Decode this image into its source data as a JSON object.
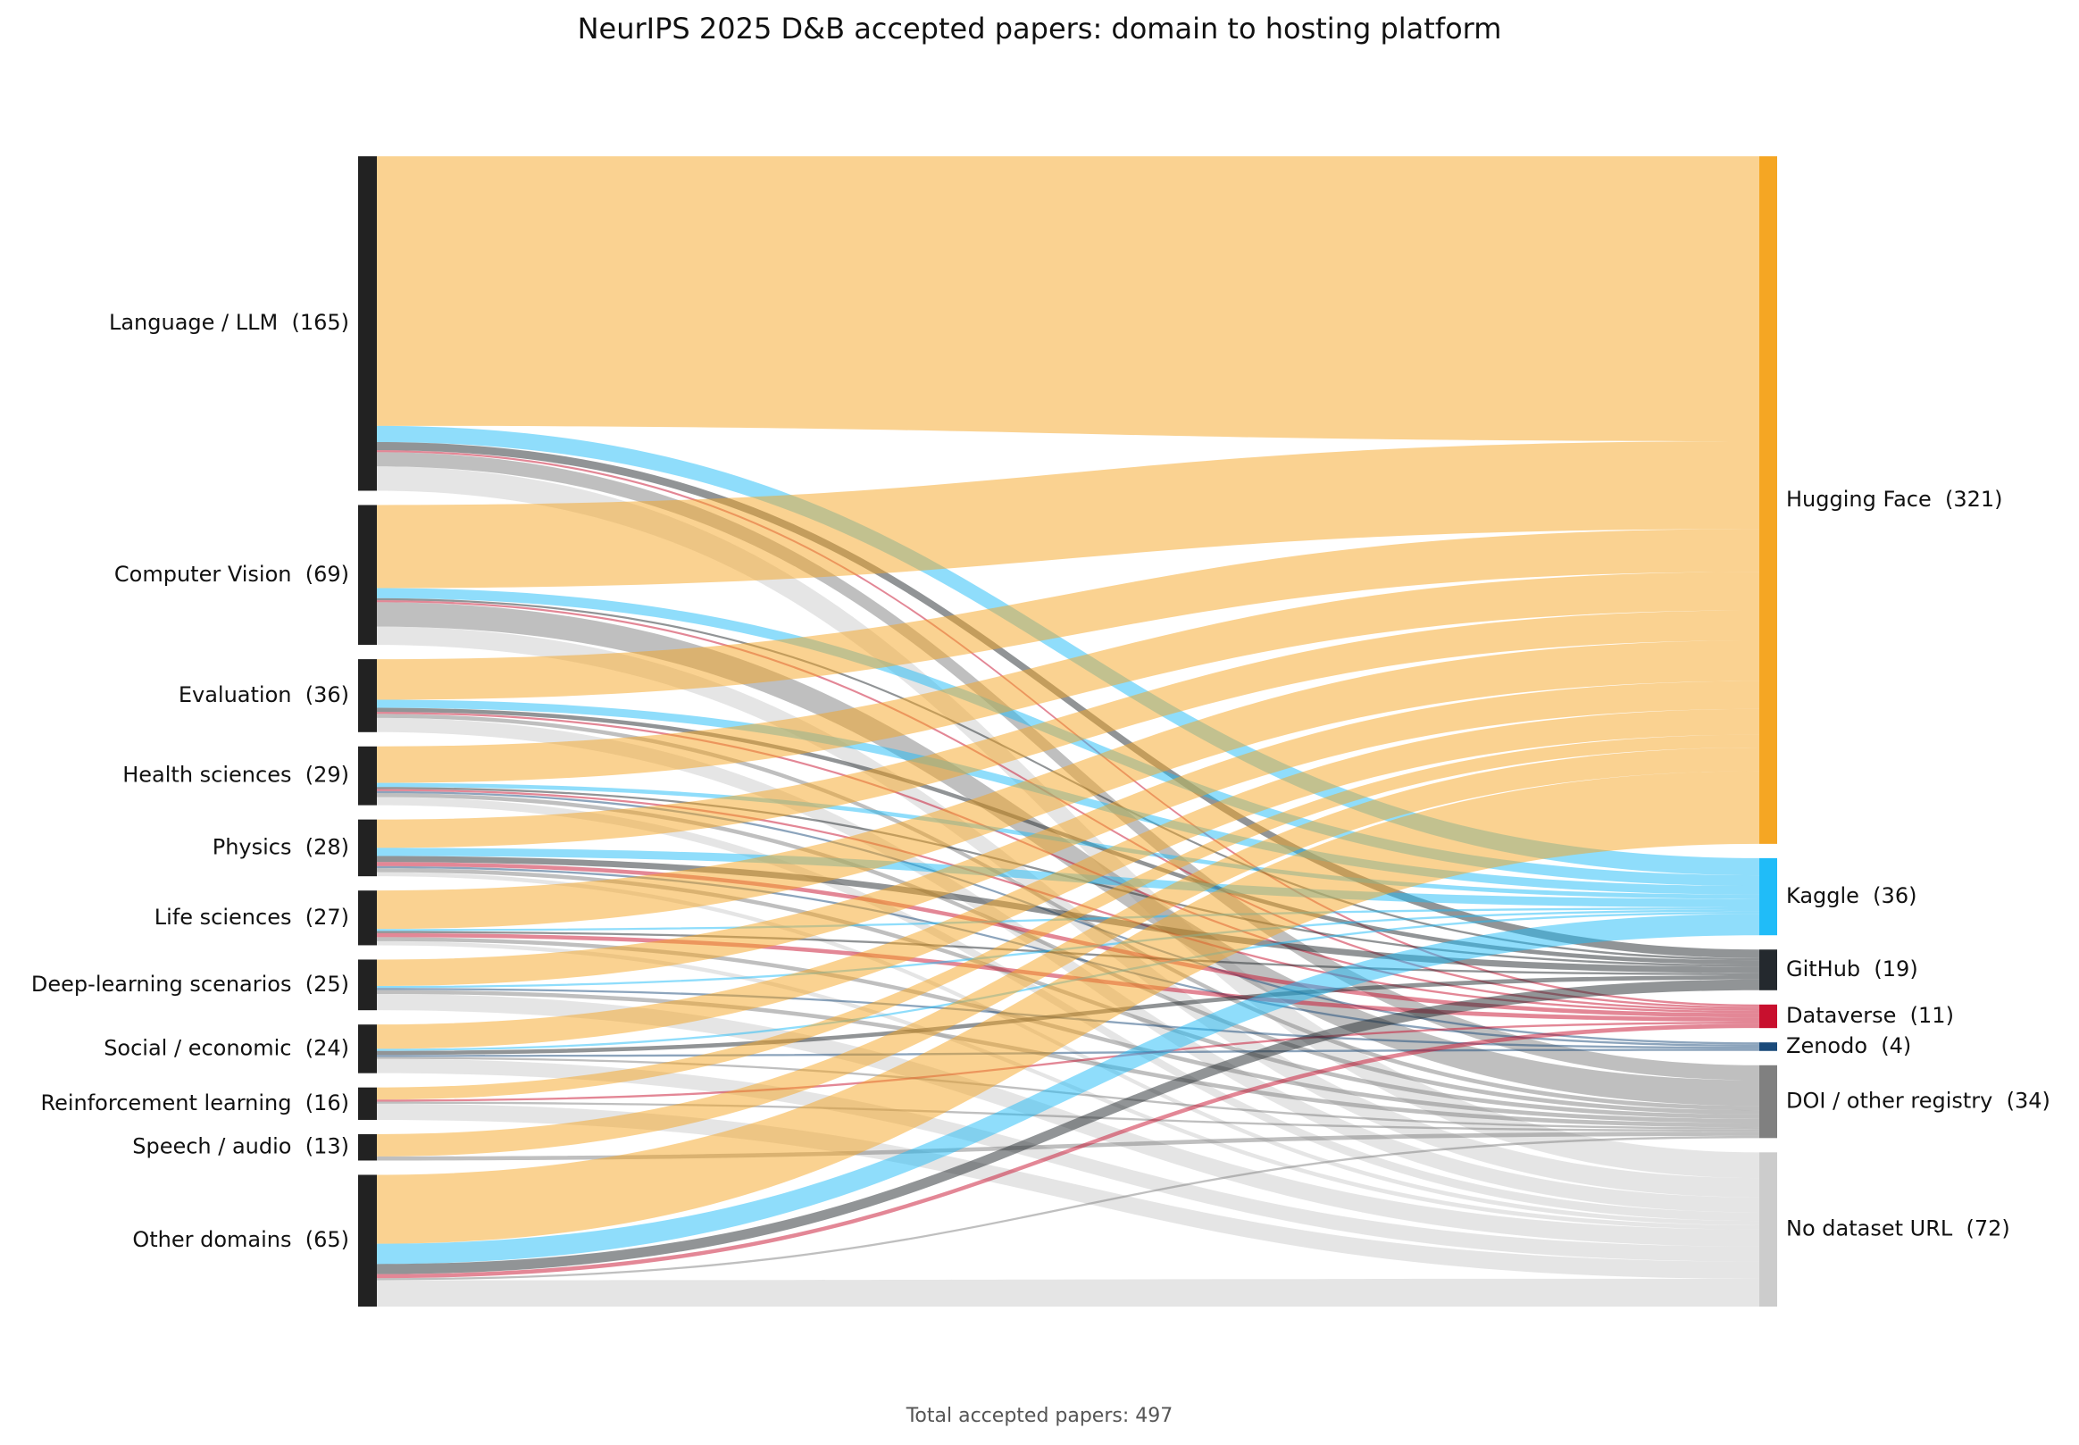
{
  "chart_data": {
    "type": "sankey",
    "title": "NeurIPS 2025 D&B accepted papers: domain to hosting platform",
    "footer": "Total accepted papers: 497",
    "source_color": "#222222",
    "sources": [
      {
        "label": "Language / LLM  (165)",
        "value": 165
      },
      {
        "label": "Computer Vision  (69)",
        "value": 69
      },
      {
        "label": "Evaluation  (36)",
        "value": 36
      },
      {
        "label": "Health sciences  (29)",
        "value": 29
      },
      {
        "label": "Physics  (28)",
        "value": 28
      },
      {
        "label": "Life sciences  (27)",
        "value": 27
      },
      {
        "label": "Deep-learning scenarios  (25)",
        "value": 25
      },
      {
        "label": "Social / economic  (24)",
        "value": 24
      },
      {
        "label": "Reinforcement learning  (16)",
        "value": 16
      },
      {
        "label": "Speech / audio  (13)",
        "value": 13
      },
      {
        "label": "Other domains  (65)",
        "value": 65
      }
    ],
    "targets": [
      {
        "label": "Hugging Face  (321)",
        "value": 321,
        "color": "#f5a623"
      },
      {
        "label": "Kaggle  (36)",
        "value": 36,
        "color": "#20bcf8"
      },
      {
        "label": "GitHub  (19)",
        "value": 19,
        "color": "#24292e"
      },
      {
        "label": "Dataverse  (11)",
        "value": 11,
        "color": "#c8102e"
      },
      {
        "label": "Zenodo  (4)",
        "value": 4,
        "color": "#1a4a7a"
      },
      {
        "label": "DOI / other registry  (34)",
        "value": 34,
        "color": "#808080"
      },
      {
        "label": "No dataset URL  (72)",
        "value": 72,
        "color": "#cccccc"
      }
    ],
    "flows": [
      [
        133,
        8,
        4,
        1,
        0,
        7,
        12
      ],
      [
        41,
        5,
        1,
        1,
        0,
        12,
        9
      ],
      [
        20,
        4,
        2,
        1,
        0,
        2,
        7
      ],
      [
        18,
        2,
        1,
        1,
        1,
        2,
        4
      ],
      [
        14,
        4,
        3,
        2,
        1,
        2,
        2
      ],
      [
        19,
        1,
        1,
        2,
        0,
        2,
        2
      ],
      [
        13,
        1,
        0,
        0,
        1,
        2,
        8
      ],
      [
        12,
        1,
        2,
        0,
        1,
        1,
        7
      ],
      [
        6,
        0,
        0,
        1,
        0,
        1,
        8
      ],
      [
        11,
        0,
        0,
        0,
        0,
        2,
        0
      ],
      [
        34,
        10,
        5,
        2,
        0,
        1,
        13
      ]
    ]
  }
}
